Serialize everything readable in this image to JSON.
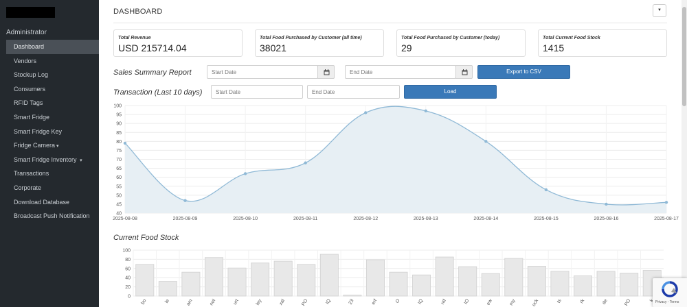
{
  "sidebar": {
    "role": "Administrator",
    "items": [
      {
        "label": "Dashboard",
        "active": true
      },
      {
        "label": "Vendors"
      },
      {
        "label": "Stockup Log"
      },
      {
        "label": "Consumers"
      },
      {
        "label": "RFID Tags"
      },
      {
        "label": "Smart Fridge"
      },
      {
        "label": "Smart Fridge Key"
      },
      {
        "label": "Fridge Camera",
        "caret": "▾"
      },
      {
        "label": "Smart Fridge Inventory",
        "caret": "▾"
      },
      {
        "label": "Transactions"
      },
      {
        "label": "Corporate"
      },
      {
        "label": "Download Database"
      },
      {
        "label": "Broadcast Push Notification"
      }
    ]
  },
  "header": {
    "title": "DASHBOARD",
    "menu_caret": "▼"
  },
  "cards": [
    {
      "label": "Total Revenue",
      "value": "USD 215714.04"
    },
    {
      "label": "Total Food Purchased by Customer (all time)",
      "value": "38021"
    },
    {
      "label": "Total Food Purchased by Customer (today)",
      "value": "29"
    },
    {
      "label": "Total Current Food Stock",
      "value": "1415"
    }
  ],
  "sales_summary": {
    "title": "Sales Summary Report",
    "start_placeholder": "Start Date",
    "end_placeholder": "End Date",
    "export_label": "Export to CSV"
  },
  "transaction": {
    "title": "Transaction (Last 10 days)",
    "start_placeholder": "Start Date",
    "end_placeholder": "End Date",
    "load_label": "Load"
  },
  "stock": {
    "title": "Current Food Stock"
  },
  "recaptcha": {
    "text": "Privacy - Terms"
  },
  "colors": {
    "sidebar_bg": "#24292e",
    "accent": "#3a79b8",
    "line": "#8fb9d6",
    "area": "#e7eff4",
    "bar": "#e8e8e8"
  },
  "chart_data": [
    {
      "type": "area",
      "x": [
        "2025-08-08",
        "2025-08-09",
        "2025-08-10",
        "2025-08-11",
        "2025-08-12",
        "2025-08-13",
        "2025-08-14",
        "2025-08-15",
        "2025-08-16",
        "2025-08-17"
      ],
      "values": [
        79,
        47,
        62,
        68,
        96,
        97,
        80,
        53,
        45,
        46
      ],
      "ylim": [
        40,
        100
      ],
      "yticks": [
        40,
        45,
        50,
        55,
        60,
        65,
        70,
        75,
        80,
        85,
        90,
        95,
        100
      ],
      "grid": true
    },
    {
      "type": "bar",
      "values": [
        69,
        32,
        52,
        84,
        61,
        72,
        76,
        69,
        91,
        2,
        79,
        52,
        46,
        85,
        64,
        49,
        82,
        65,
        54,
        44,
        54,
        50,
        56
      ],
      "ylim": [
        0,
        100
      ],
      "yticks": [
        0,
        20,
        40,
        60,
        80,
        100
      ],
      "tick_labels": [
        "bo",
        "le",
        "am",
        "nel",
        "urt",
        "ley",
        "xal",
        "PO",
        "IQ",
        "23",
        "erf",
        "O",
        "IQ",
        "nd",
        "IO",
        "ew",
        "my",
        "ock",
        "ts",
        "rk",
        "de",
        "PO",
        "k"
      ],
      "grid": true
    }
  ]
}
